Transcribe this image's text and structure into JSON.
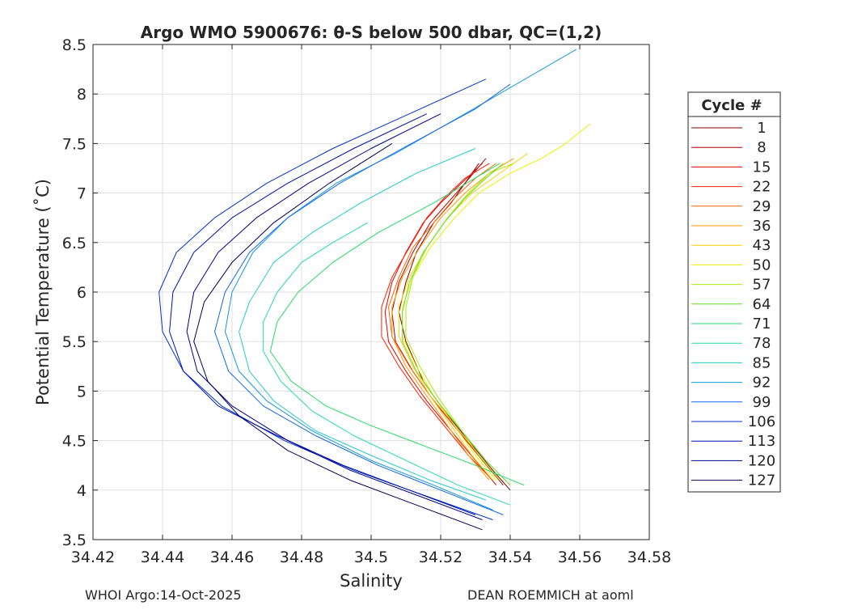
{
  "chart_data": {
    "type": "line",
    "title": "Argo WMO 5900676: θ-S below 500 dbar,  QC=(1,2)",
    "xlabel": "Salinity",
    "ylabel": "Potential Temperature (˚C)",
    "xlim": [
      34.42,
      34.58
    ],
    "ylim": [
      3.5,
      8.5
    ],
    "x_ticks": [
      "34.42",
      "34.44",
      "34.46",
      "34.48",
      "34.5",
      "34.52",
      "34.54",
      "34.56",
      "34.58"
    ],
    "y_ticks": [
      "8.5",
      "8",
      "7.5",
      "7",
      "6.5",
      "6",
      "5.5",
      "5",
      "4.5",
      "4",
      "3.5"
    ],
    "grid": true,
    "legend": {
      "title": "Cycle #",
      "position": "right",
      "entries": [
        "1",
        "8",
        "15",
        "22",
        "29",
        "36",
        "43",
        "50",
        "57",
        "64",
        "71",
        "78",
        "85",
        "92",
        "99",
        "106",
        "113",
        "120",
        "127"
      ]
    },
    "series": [
      {
        "name": "1",
        "color": "#800000",
        "s": [
          34.54,
          34.535,
          34.528,
          34.521,
          34.515,
          34.51,
          34.508,
          34.51,
          34.513,
          34.518,
          34.523,
          34.527,
          34.531
        ],
        "t": [
          4.0,
          4.2,
          4.5,
          4.8,
          5.1,
          5.5,
          5.8,
          6.1,
          6.4,
          6.7,
          6.9,
          7.1,
          7.3
        ]
      },
      {
        "name": "8",
        "color": "#b00000",
        "s": [
          34.538,
          34.532,
          34.525,
          34.518,
          34.512,
          34.507,
          34.506,
          34.508,
          34.512,
          34.517,
          34.522,
          34.527,
          34.533
        ],
        "t": [
          4.05,
          4.3,
          4.6,
          4.9,
          5.2,
          5.5,
          5.8,
          6.1,
          6.4,
          6.7,
          6.9,
          7.1,
          7.35
        ]
      },
      {
        "name": "15",
        "color": "#dd0000",
        "s": [
          34.536,
          34.53,
          34.523,
          34.516,
          34.51,
          34.505,
          34.504,
          34.506,
          34.51,
          34.515,
          34.52,
          34.526,
          34.532
        ],
        "t": [
          4.05,
          4.3,
          4.6,
          4.9,
          5.2,
          5.5,
          5.8,
          6.1,
          6.4,
          6.7,
          6.9,
          7.1,
          7.3
        ]
      },
      {
        "name": "22",
        "color": "#ff2200",
        "s": [
          34.535,
          34.528,
          34.521,
          34.514,
          34.508,
          34.503,
          34.503,
          34.506,
          34.511,
          34.516,
          34.521,
          34.527,
          34.534
        ],
        "t": [
          4.1,
          4.35,
          4.65,
          4.95,
          5.25,
          5.55,
          5.85,
          6.15,
          6.45,
          6.75,
          6.95,
          7.15,
          7.3
        ]
      },
      {
        "name": "29",
        "color": "#ff6600",
        "s": [
          34.537,
          34.531,
          34.524,
          34.517,
          34.511,
          34.506,
          34.505,
          34.508,
          34.512,
          34.518,
          34.524,
          34.53,
          34.536
        ],
        "t": [
          4.1,
          4.35,
          4.65,
          4.95,
          5.25,
          5.55,
          5.85,
          6.15,
          6.45,
          6.7,
          6.95,
          7.15,
          7.3
        ]
      },
      {
        "name": "36",
        "color": "#ff9900",
        "s": [
          34.534,
          34.528,
          34.522,
          34.516,
          34.51,
          34.506,
          34.506,
          34.509,
          34.514,
          34.52,
          34.527,
          34.534,
          34.541
        ],
        "t": [
          4.1,
          4.35,
          4.65,
          4.95,
          5.25,
          5.55,
          5.85,
          6.15,
          6.45,
          6.75,
          7.0,
          7.2,
          7.35
        ]
      },
      {
        "name": "43",
        "color": "#ffcc00",
        "s": [
          34.535,
          34.529,
          34.523,
          34.517,
          34.512,
          34.508,
          34.508,
          34.511,
          34.516,
          34.522,
          34.529,
          34.537,
          34.545
        ],
        "t": [
          4.1,
          4.35,
          4.65,
          4.95,
          5.25,
          5.55,
          5.85,
          6.15,
          6.45,
          6.75,
          7.0,
          7.2,
          7.4
        ]
      },
      {
        "name": "50",
        "color": "#eeee00",
        "s": [
          34.536,
          34.53,
          34.524,
          34.518,
          34.513,
          34.509,
          34.509,
          34.512,
          34.517,
          34.524,
          34.531,
          34.54,
          34.549,
          34.556,
          34.563
        ],
        "t": [
          4.1,
          4.35,
          4.65,
          4.95,
          5.25,
          5.55,
          5.85,
          6.15,
          6.45,
          6.75,
          7.0,
          7.2,
          7.35,
          7.5,
          7.7
        ]
      },
      {
        "name": "57",
        "color": "#aaee00",
        "s": [
          34.537,
          34.531,
          34.525,
          34.519,
          34.514,
          34.51,
          34.51,
          34.512,
          34.516,
          34.522,
          34.528,
          34.534,
          34.541
        ],
        "t": [
          4.1,
          4.35,
          4.65,
          4.95,
          5.25,
          5.55,
          5.85,
          6.15,
          6.45,
          6.75,
          7.0,
          7.2,
          7.3
        ]
      },
      {
        "name": "64",
        "color": "#66dd22",
        "s": [
          34.54,
          34.533,
          34.526,
          34.519,
          34.513,
          34.509,
          34.509,
          34.511,
          34.515,
          34.521,
          34.527,
          34.533,
          34.538
        ],
        "t": [
          4.05,
          4.3,
          4.6,
          4.9,
          5.2,
          5.5,
          5.8,
          6.1,
          6.4,
          6.7,
          6.95,
          7.15,
          7.3
        ]
      },
      {
        "name": "71",
        "color": "#22dd66",
        "s": [
          34.544,
          34.53,
          34.515,
          34.5,
          34.487,
          34.477,
          34.471,
          34.473,
          34.479,
          34.489,
          34.502,
          34.518,
          34.537
        ],
        "t": [
          4.05,
          4.25,
          4.45,
          4.65,
          4.85,
          5.1,
          5.4,
          5.7,
          6.0,
          6.3,
          6.6,
          6.9,
          7.3
        ]
      },
      {
        "name": "78",
        "color": "#22ddaa",
        "s": [
          34.54,
          34.525,
          34.51,
          34.495,
          34.483,
          34.474,
          34.469,
          34.469,
          34.473,
          34.48,
          34.489,
          34.499
        ],
        "t": [
          3.85,
          4.05,
          4.3,
          4.55,
          4.8,
          5.1,
          5.4,
          5.7,
          6.0,
          6.3,
          6.5,
          6.7
        ]
      },
      {
        "name": "85",
        "color": "#22cccc",
        "s": [
          34.533,
          34.517,
          34.5,
          34.484,
          34.472,
          34.465,
          34.462,
          34.465,
          34.472,
          34.483,
          34.497,
          34.513,
          34.53
        ],
        "t": [
          3.9,
          4.1,
          4.35,
          4.6,
          4.9,
          5.2,
          5.6,
          5.9,
          6.3,
          6.6,
          6.9,
          7.2,
          7.45
        ]
      },
      {
        "name": "92",
        "color": "#1199dd",
        "s": [
          34.535,
          34.518,
          34.5,
          34.483,
          34.47,
          34.462,
          34.458,
          34.46,
          34.466,
          34.476,
          34.49,
          34.507,
          34.527,
          34.559
        ],
        "t": [
          3.8,
          4.05,
          4.3,
          4.6,
          4.9,
          5.2,
          5.6,
          6.0,
          6.4,
          6.75,
          7.1,
          7.4,
          7.8,
          8.45
        ]
      },
      {
        "name": "99",
        "color": "#1166ee",
        "s": [
          34.538,
          34.52,
          34.502,
          34.484,
          34.469,
          34.459,
          34.455,
          34.458,
          34.465,
          34.476,
          34.491,
          34.509,
          34.53,
          34.54
        ],
        "t": [
          3.75,
          4.0,
          4.25,
          4.55,
          4.85,
          5.2,
          5.6,
          6.0,
          6.4,
          6.75,
          7.1,
          7.45,
          7.85,
          8.1
        ]
      },
      {
        "name": "106",
        "color": "#0033cc",
        "s": [
          34.535,
          34.515,
          34.495,
          34.475,
          34.457,
          34.446,
          34.44,
          34.439,
          34.444,
          34.455,
          34.47,
          34.489,
          34.511,
          34.533
        ],
        "t": [
          3.7,
          3.95,
          4.2,
          4.5,
          4.85,
          5.2,
          5.6,
          6.0,
          6.4,
          6.75,
          7.1,
          7.45,
          7.8,
          8.15
        ]
      },
      {
        "name": "113",
        "color": "#0011aa",
        "s": [
          34.53,
          34.511,
          34.492,
          34.473,
          34.456,
          34.446,
          34.442,
          34.443,
          34.449,
          34.46,
          34.476,
          34.495,
          34.516
        ],
        "t": [
          3.75,
          4.0,
          4.25,
          4.55,
          4.85,
          5.2,
          5.6,
          6.0,
          6.4,
          6.75,
          7.1,
          7.45,
          7.8
        ]
      },
      {
        "name": "120",
        "color": "#000088",
        "s": [
          34.532,
          34.513,
          34.494,
          34.476,
          34.46,
          34.45,
          34.447,
          34.449,
          34.456,
          34.467,
          34.482,
          34.5,
          34.52
        ],
        "t": [
          3.7,
          3.95,
          4.2,
          4.5,
          4.85,
          5.2,
          5.6,
          6.0,
          6.4,
          6.75,
          7.1,
          7.45,
          7.8
        ]
      },
      {
        "name": "127",
        "color": "#000055",
        "s": [
          34.532,
          34.513,
          34.494,
          34.476,
          34.462,
          34.453,
          34.449,
          34.452,
          34.46,
          34.472,
          34.488,
          34.506
        ],
        "t": [
          3.6,
          3.85,
          4.1,
          4.4,
          4.75,
          5.1,
          5.5,
          5.9,
          6.3,
          6.7,
          7.1,
          7.5
        ]
      }
    ]
  },
  "footer": {
    "left": "WHOI Argo:14-Oct-2025",
    "right": "DEAN ROEMMICH at aoml"
  }
}
